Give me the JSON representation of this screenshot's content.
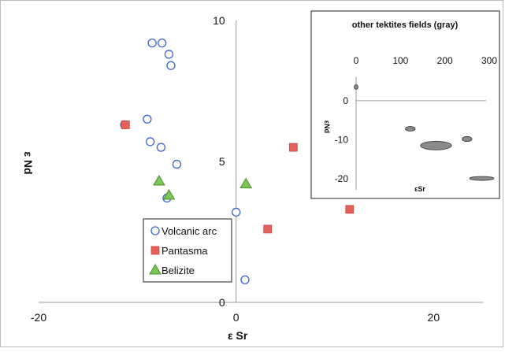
{
  "chart_data": [
    {
      "type": "scatter",
      "xlabel": "ε Sr",
      "ylabel": "ε Nd",
      "xlim": [
        -20,
        25
      ],
      "ylim": [
        0,
        10
      ],
      "x_ticks": [
        -20,
        0,
        20
      ],
      "y_ticks": [
        0,
        5,
        10
      ],
      "legend_position": "lower-center",
      "series": [
        {
          "name": "Volcanic arc",
          "marker": "circle",
          "color": "#3a63d6",
          "fill": "#ffffff",
          "points": [
            {
              "x": -8.5,
              "y": 9.2
            },
            {
              "x": -7.5,
              "y": 9.2
            },
            {
              "x": -6.8,
              "y": 8.8
            },
            {
              "x": -6.6,
              "y": 8.4
            },
            {
              "x": -9.0,
              "y": 6.5
            },
            {
              "x": -11.3,
              "y": 6.3
            },
            {
              "x": -8.7,
              "y": 5.7
            },
            {
              "x": -7.6,
              "y": 5.5
            },
            {
              "x": -6.0,
              "y": 4.9
            },
            {
              "x": -7.0,
              "y": 3.7
            },
            {
              "x": 0.0,
              "y": 3.2
            },
            {
              "x": 0.9,
              "y": 0.8
            }
          ]
        },
        {
          "name": "Pantasma",
          "marker": "square",
          "color": "#e4605a",
          "points": [
            {
              "x": -11.2,
              "y": 6.3
            },
            {
              "x": 5.8,
              "y": 5.5
            },
            {
              "x": 3.2,
              "y": 2.6
            },
            {
              "x": 11.5,
              "y": 3.3
            }
          ]
        },
        {
          "name": "Belizite",
          "marker": "triangle",
          "color": "#7cc657",
          "points": [
            {
              "x": -7.8,
              "y": 4.3
            },
            {
              "x": -6.8,
              "y": 3.8
            },
            {
              "x": 1.0,
              "y": 4.2
            }
          ]
        }
      ]
    },
    {
      "type": "scatter",
      "title": "other tektites fields (gray)",
      "xlabel": "εSr",
      "ylabel": "εNd",
      "xlim": [
        0,
        300
      ],
      "ylim": [
        -22,
        5
      ],
      "x_ticks": [
        0,
        100,
        200,
        300
      ],
      "y_ticks": [
        0,
        -10,
        -20
      ],
      "fields": [
        {
          "x": 0,
          "y": 3.5,
          "width": 8,
          "height": 1.2
        },
        {
          "x": 122,
          "y": -7.2,
          "width": 22,
          "height": 1.2
        },
        {
          "x": 180,
          "y": -11.5,
          "width": 70,
          "height": 2.2
        },
        {
          "x": 250,
          "y": -9.8,
          "width": 22,
          "height": 1.3
        },
        {
          "x": 283,
          "y": -19.9,
          "width": 55,
          "height": 1.0
        }
      ],
      "field_color": "#8a8a8a"
    }
  ],
  "legend": {
    "items": [
      {
        "label": "Volcanic arc",
        "marker": "circle",
        "color": "#3a63d6"
      },
      {
        "label": "Pantasma",
        "marker": "square",
        "color": "#e4605a"
      },
      {
        "label": "Belizite",
        "marker": "triangle",
        "color": "#7cc657"
      }
    ]
  }
}
